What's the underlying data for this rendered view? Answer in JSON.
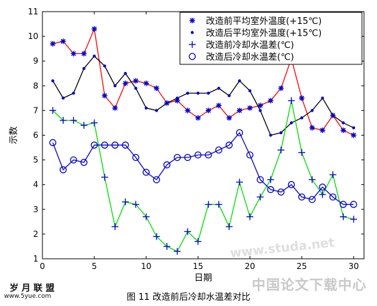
{
  "chart_data": {
    "type": "line",
    "x": [
      1,
      2,
      3,
      4,
      5,
      6,
      7,
      8,
      9,
      10,
      11,
      12,
      13,
      14,
      15,
      16,
      17,
      18,
      19,
      20,
      21,
      22,
      23,
      24,
      25,
      26,
      27,
      28,
      29,
      30
    ],
    "xlabel": "日期",
    "ylabel": "示数",
    "xlim": [
      0,
      31
    ],
    "ylim": [
      1,
      11
    ],
    "xticks": [
      0,
      5,
      10,
      15,
      20,
      25,
      30
    ],
    "yticks": [
      1,
      2,
      3,
      4,
      5,
      6,
      7,
      8,
      9,
      10,
      11
    ],
    "legend_position": "top-right",
    "grid": false,
    "series": [
      {
        "name": "改造前平均室外温度(+15℃)",
        "marker": "star",
        "color": "#ff0000",
        "marker_color": "#0000cc",
        "values": [
          9.7,
          9.8,
          9.3,
          9.3,
          10.3,
          7.6,
          7.1,
          8.1,
          8.2,
          8.1,
          7.9,
          7.3,
          7.4,
          7.0,
          6.7,
          7.0,
          7.2,
          6.7,
          7.0,
          7.1,
          7.2,
          7.4,
          7.9,
          9.1,
          7.5,
          6.3,
          6.2,
          6.8,
          6.2,
          6.0
        ]
      },
      {
        "name": "改造后平均室外温度(+15℃)",
        "marker": "dot",
        "color": "#000000",
        "marker_color": "#0000cc",
        "values": [
          8.2,
          7.5,
          7.7,
          8.7,
          9.2,
          8.8,
          8.0,
          8.5,
          7.9,
          7.1,
          7.0,
          7.3,
          7.5,
          7.7,
          7.7,
          7.7,
          7.9,
          7.6,
          8.2,
          7.8,
          7.0,
          6.0,
          6.1,
          6.5,
          6.7,
          7.0,
          7.5,
          6.8,
          6.5,
          6.3
        ]
      },
      {
        "name": "改造前冷却水温差(℃)",
        "marker": "plus",
        "color": "#00dd00",
        "marker_color": "#0000cc",
        "values": [
          7.0,
          6.6,
          6.6,
          6.4,
          6.5,
          4.3,
          2.3,
          3.3,
          3.2,
          2.7,
          1.9,
          1.5,
          1.3,
          2.1,
          1.7,
          3.2,
          3.2,
          2.3,
          4.1,
          2.7,
          3.5,
          4.2,
          5.4,
          7.4,
          5.3,
          4.2,
          3.6,
          4.4,
          2.7,
          2.6
        ]
      },
      {
        "name": "改造后冷却水温差(℃)",
        "marker": "circle",
        "color": "#0000cc",
        "marker_color": "#0000cc",
        "values": [
          5.7,
          4.6,
          5.0,
          4.9,
          5.6,
          5.6,
          5.6,
          5.6,
          5.1,
          4.5,
          4.2,
          4.8,
          5.1,
          5.1,
          5.2,
          5.2,
          5.4,
          5.6,
          6.1,
          5.2,
          4.2,
          3.8,
          3.7,
          4.0,
          3.5,
          3.4,
          3.9,
          3.5,
          3.2,
          3.2
        ]
      }
    ]
  },
  "caption": "图 11  改造前后冷却水温差对比",
  "watermarks": {
    "logo": "岁 月 联 盟",
    "logo_url": "www.5yue.com",
    "site_cn": "中国论文下载中心",
    "site_url": "www.studa.net"
  }
}
